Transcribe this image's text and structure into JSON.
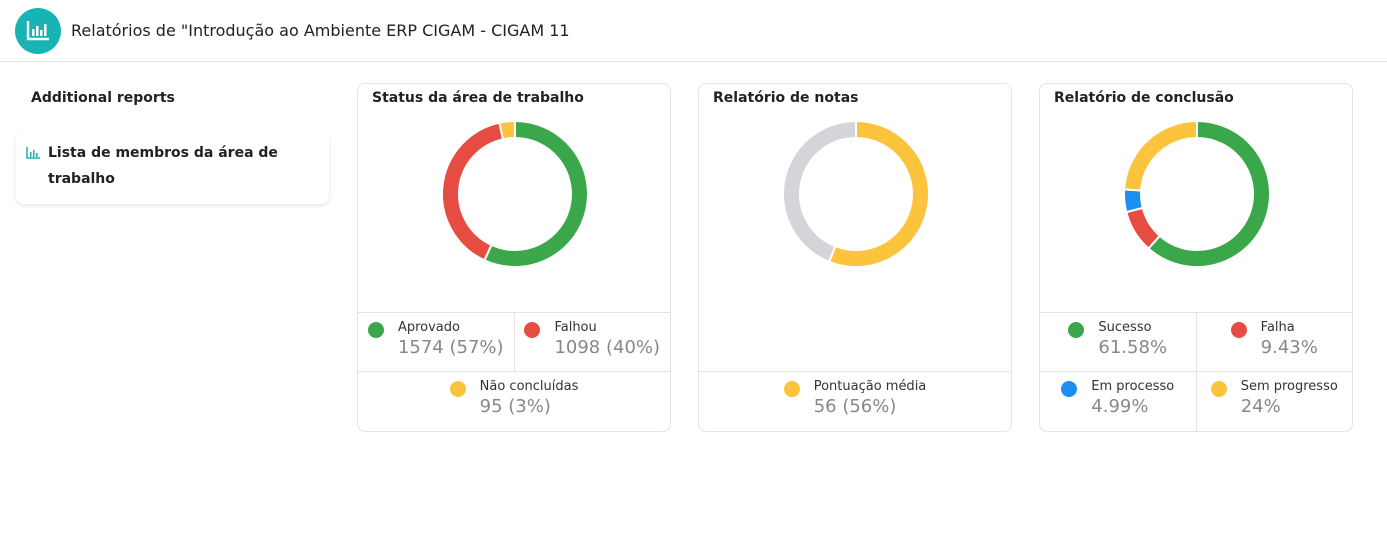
{
  "header": {
    "title": "Relatórios de \"Introdução ao Ambiente ERP CIGAM - CIGAM 11",
    "icon": "bar-chart-icon",
    "accent": "#17b3b5"
  },
  "sidebar": {
    "title": "Additional reports",
    "items": [
      {
        "label": "Lista de membros da área de trabalho",
        "icon": "bar-chart-icon"
      }
    ]
  },
  "chart_data": [
    {
      "type": "pie",
      "title": "Status da área de trabalho",
      "donut": true,
      "series": [
        {
          "name": "Aprovado",
          "value": 1574,
          "label": "1574 (57%)",
          "color": "#3aa84a"
        },
        {
          "name": "Falhou",
          "value": 1098,
          "label": "1098 (40%)",
          "color": "#e74c42"
        },
        {
          "name": "Não concluídas",
          "value": 95,
          "label": "95 (3%)",
          "color": "#fcc33c"
        }
      ]
    },
    {
      "type": "pie",
      "title": "Relatório de notas",
      "donut": true,
      "series": [
        {
          "name": "Pontuação média",
          "value": 56,
          "label": "56 (56%)",
          "color": "#fcc33c"
        },
        {
          "value": 44,
          "color": "#d4d5d9"
        }
      ]
    },
    {
      "type": "pie",
      "title": "Relatório de conclusão",
      "donut": true,
      "series": [
        {
          "name": "Sucesso",
          "value": 61.58,
          "label": "61.58%",
          "color": "#3aa84a"
        },
        {
          "name": "Falha",
          "value": 9.43,
          "label": "9.43%",
          "color": "#e74c42"
        },
        {
          "name": "Em processo",
          "value": 4.99,
          "label": "4.99%",
          "color": "#1a8ff0"
        },
        {
          "name": "Sem progresso",
          "value": 24,
          "label": "24%",
          "color": "#fcc33c"
        }
      ]
    }
  ]
}
